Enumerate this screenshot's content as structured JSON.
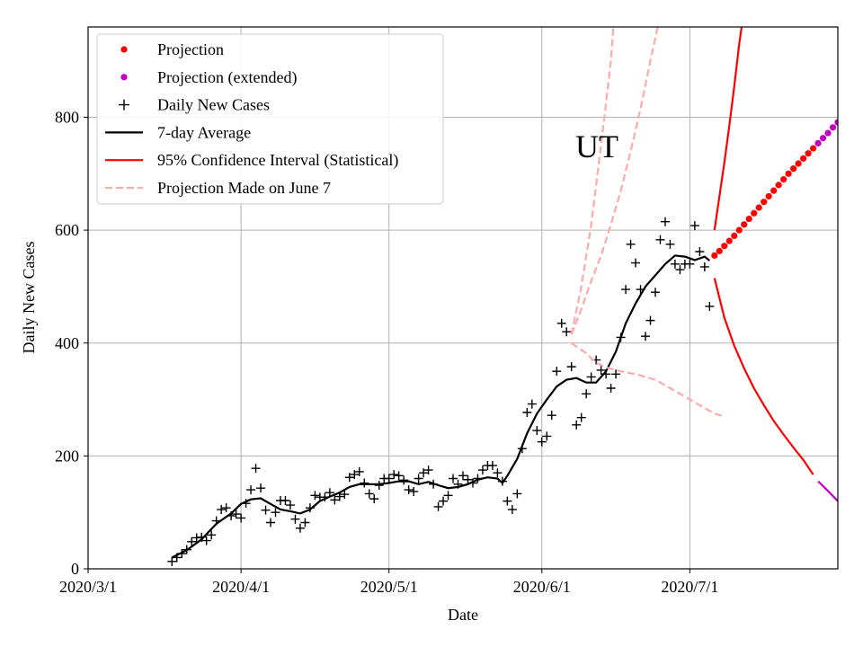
{
  "chart_data": {
    "type": "line",
    "title": "",
    "annotation": "UT",
    "xlabel": "Date",
    "ylabel": "Daily New Cases",
    "x_start_date": "2020-03-01",
    "xlim": [
      0,
      152
    ],
    "ylim": [
      0,
      960
    ],
    "xticks": [
      {
        "label": "2020/3/1",
        "day": 0
      },
      {
        "label": "2020/4/1",
        "day": 31
      },
      {
        "label": "2020/5/1",
        "day": 61
      },
      {
        "label": "2020/6/1",
        "day": 92
      },
      {
        "label": "2020/7/1",
        "day": 122
      }
    ],
    "yticks": [
      0,
      200,
      400,
      600,
      800
    ],
    "grid": true,
    "legend_position": "top-left",
    "legend": [
      {
        "label": "Projection",
        "style": "dot",
        "color": "#ff0000"
      },
      {
        "label": "Projection (extended)",
        "style": "dot",
        "color": "#bf00bf"
      },
      {
        "label": "Daily New Cases",
        "style": "plus",
        "color": "#000000"
      },
      {
        "label": "7-day Average",
        "style": "line",
        "color": "#000000"
      },
      {
        "label": "95% Confidence Interval (Statistical)",
        "style": "line",
        "color": "#ff0000"
      },
      {
        "label": "Projection Made on June 7",
        "style": "dashed",
        "color": "#ffaaaa"
      }
    ],
    "series": [
      {
        "name": "Daily New Cases",
        "kind": "scatter_plus",
        "color": "#000000",
        "points": [
          [
            17,
            13
          ],
          [
            18,
            20
          ],
          [
            19,
            27
          ],
          [
            20,
            34
          ],
          [
            21,
            48
          ],
          [
            22,
            55
          ],
          [
            23,
            56
          ],
          [
            24,
            50
          ],
          [
            25,
            60
          ],
          [
            26,
            85
          ],
          [
            27,
            105
          ],
          [
            28,
            108
          ],
          [
            29,
            94
          ],
          [
            30,
            97
          ],
          [
            31,
            90
          ],
          [
            32,
            116
          ],
          [
            33,
            140
          ],
          [
            34,
            178
          ],
          [
            35,
            143
          ],
          [
            36,
            104
          ],
          [
            37,
            82
          ],
          [
            38,
            100
          ],
          [
            39,
            121
          ],
          [
            40,
            121
          ],
          [
            41,
            113
          ],
          [
            42,
            88
          ],
          [
            43,
            72
          ],
          [
            44,
            82
          ],
          [
            45,
            108
          ],
          [
            46,
            130
          ],
          [
            47,
            127
          ],
          [
            48,
            127
          ],
          [
            49,
            135
          ],
          [
            50,
            122
          ],
          [
            51,
            128
          ],
          [
            52,
            132
          ],
          [
            53,
            162
          ],
          [
            54,
            167
          ],
          [
            55,
            172
          ],
          [
            56,
            152
          ],
          [
            57,
            133
          ],
          [
            58,
            124
          ],
          [
            59,
            148
          ],
          [
            60,
            160
          ],
          [
            61,
            160
          ],
          [
            62,
            167
          ],
          [
            63,
            165
          ],
          [
            64,
            157
          ],
          [
            65,
            140
          ],
          [
            66,
            137
          ],
          [
            67,
            160
          ],
          [
            68,
            170
          ],
          [
            69,
            175
          ],
          [
            70,
            150
          ],
          [
            71,
            110
          ],
          [
            72,
            120
          ],
          [
            73,
            130
          ],
          [
            74,
            160
          ],
          [
            75,
            150
          ],
          [
            76,
            165
          ],
          [
            77,
            158
          ],
          [
            78,
            152
          ],
          [
            79,
            160
          ],
          [
            80,
            175
          ],
          [
            81,
            183
          ],
          [
            82,
            183
          ],
          [
            83,
            170
          ],
          [
            84,
            155
          ],
          [
            85,
            120
          ],
          [
            86,
            105
          ],
          [
            87,
            133
          ],
          [
            88,
            213
          ],
          [
            89,
            277
          ],
          [
            90,
            292
          ],
          [
            91,
            245
          ],
          [
            92,
            225
          ],
          [
            93,
            235
          ],
          [
            94,
            272
          ],
          [
            95,
            350
          ],
          [
            96,
            435
          ],
          [
            97,
            420
          ],
          [
            98,
            358
          ],
          [
            99,
            255
          ],
          [
            100,
            268
          ],
          [
            101,
            310
          ],
          [
            102,
            340
          ],
          [
            103,
            370
          ],
          [
            104,
            352
          ],
          [
            105,
            345
          ],
          [
            106,
            320
          ],
          [
            107,
            345
          ],
          [
            108,
            410
          ],
          [
            109,
            495
          ],
          [
            110,
            575
          ],
          [
            111,
            542
          ],
          [
            112,
            495
          ],
          [
            113,
            412
          ],
          [
            114,
            440
          ],
          [
            115,
            490
          ],
          [
            116,
            583
          ],
          [
            117,
            615
          ],
          [
            118,
            575
          ],
          [
            119,
            540
          ],
          [
            120,
            530
          ],
          [
            121,
            540
          ],
          [
            122,
            540
          ],
          [
            123,
            608
          ],
          [
            124,
            562
          ],
          [
            125,
            535
          ],
          [
            126,
            465
          ]
        ]
      },
      {
        "name": "7-day Average",
        "kind": "line",
        "color": "#000000",
        "points": [
          [
            17,
            20
          ],
          [
            20,
            33
          ],
          [
            23,
            52
          ],
          [
            26,
            80
          ],
          [
            29,
            98
          ],
          [
            31,
            115
          ],
          [
            33,
            123
          ],
          [
            35,
            125
          ],
          [
            37,
            115
          ],
          [
            39,
            105
          ],
          [
            41,
            102
          ],
          [
            43,
            98
          ],
          [
            45,
            105
          ],
          [
            47,
            120
          ],
          [
            49,
            128
          ],
          [
            51,
            135
          ],
          [
            53,
            145
          ],
          [
            55,
            150
          ],
          [
            57,
            150
          ],
          [
            59,
            150
          ],
          [
            61,
            152
          ],
          [
            63,
            155
          ],
          [
            65,
            155
          ],
          [
            67,
            150
          ],
          [
            69,
            154
          ],
          [
            71,
            148
          ],
          [
            73,
            143
          ],
          [
            75,
            145
          ],
          [
            77,
            150
          ],
          [
            79,
            158
          ],
          [
            81,
            162
          ],
          [
            83,
            160
          ],
          [
            84,
            152
          ],
          [
            85,
            165
          ],
          [
            87,
            195
          ],
          [
            89,
            240
          ],
          [
            91,
            275
          ],
          [
            93,
            300
          ],
          [
            95,
            323
          ],
          [
            97,
            335
          ],
          [
            99,
            338
          ],
          [
            101,
            330
          ],
          [
            103,
            330
          ],
          [
            105,
            350
          ],
          [
            107,
            385
          ],
          [
            109,
            435
          ],
          [
            111,
            470
          ],
          [
            113,
            500
          ],
          [
            115,
            520
          ],
          [
            117,
            540
          ],
          [
            119,
            555
          ],
          [
            121,
            553
          ],
          [
            123,
            547
          ],
          [
            125,
            553
          ],
          [
            126,
            546
          ]
        ]
      },
      {
        "name": "Projection",
        "kind": "dots",
        "color": "#ff0000",
        "points": [
          [
            127,
            555
          ],
          [
            128,
            563
          ],
          [
            129,
            572
          ],
          [
            130,
            581
          ],
          [
            131,
            590
          ],
          [
            132,
            600
          ],
          [
            133,
            610
          ],
          [
            134,
            620
          ],
          [
            135,
            630
          ],
          [
            136,
            640
          ],
          [
            137,
            650
          ],
          [
            138,
            660
          ],
          [
            139,
            670
          ],
          [
            140,
            680
          ],
          [
            141,
            690
          ],
          [
            142,
            700
          ],
          [
            143,
            709
          ],
          [
            144,
            718
          ],
          [
            145,
            727
          ],
          [
            146,
            736
          ],
          [
            147,
            745
          ]
        ]
      },
      {
        "name": "Projection (extended)",
        "kind": "dots",
        "color": "#bf00bf",
        "points": [
          [
            148,
            754
          ],
          [
            149,
            763
          ],
          [
            150,
            772
          ],
          [
            151,
            782
          ],
          [
            152,
            791
          ],
          [
            153,
            800
          ]
        ]
      },
      {
        "name": "95% CI upper",
        "kind": "line",
        "color": "#ff0000",
        "points": [
          [
            127,
            600
          ],
          [
            128,
            660
          ],
          [
            129,
            720
          ],
          [
            130,
            785
          ],
          [
            131,
            855
          ],
          [
            132,
            930
          ],
          [
            132.5,
            960
          ]
        ]
      },
      {
        "name": "95% CI lower",
        "kind": "line",
        "color": "#ff0000",
        "points": [
          [
            127,
            515
          ],
          [
            129,
            445
          ],
          [
            131,
            395
          ],
          [
            133,
            355
          ],
          [
            135,
            320
          ],
          [
            137,
            290
          ],
          [
            139,
            262
          ],
          [
            141,
            238
          ],
          [
            143,
            215
          ],
          [
            145,
            193
          ],
          [
            147,
            167
          ]
        ]
      },
      {
        "name": "95% CI lower (extended)",
        "kind": "line",
        "color": "#bf00bf",
        "points": [
          [
            148,
            155
          ],
          [
            150,
            138
          ],
          [
            152,
            120
          ],
          [
            153,
            108
          ]
        ]
      },
      {
        "name": "June 7 projection upper",
        "kind": "dashed",
        "color": "#ffaaaa",
        "points": [
          [
            98,
            415
          ],
          [
            100,
            500
          ],
          [
            102,
            610
          ],
          [
            104,
            750
          ],
          [
            106,
            900
          ],
          [
            106.5,
            960
          ]
        ]
      },
      {
        "name": "June 7 projection middle",
        "kind": "dashed",
        "color": "#ffaaaa",
        "points": [
          [
            98,
            415
          ],
          [
            100,
            460
          ],
          [
            102,
            510
          ],
          [
            104,
            555
          ],
          [
            106,
            610
          ],
          [
            108,
            670
          ],
          [
            110,
            740
          ],
          [
            112,
            815
          ],
          [
            114,
            900
          ],
          [
            115.5,
            960
          ]
        ]
      },
      {
        "name": "June 7 projection lower",
        "kind": "dashed",
        "color": "#ffaaaa",
        "points": [
          [
            98,
            400
          ],
          [
            101,
            382
          ],
          [
            103,
            365
          ],
          [
            105,
            357
          ],
          [
            107,
            352
          ],
          [
            109,
            348
          ],
          [
            111,
            345
          ],
          [
            113,
            340
          ],
          [
            115,
            335
          ],
          [
            117,
            325
          ],
          [
            119,
            315
          ],
          [
            121,
            305
          ],
          [
            123,
            295
          ],
          [
            125,
            285
          ],
          [
            127,
            275
          ],
          [
            129,
            270
          ]
        ]
      }
    ]
  }
}
